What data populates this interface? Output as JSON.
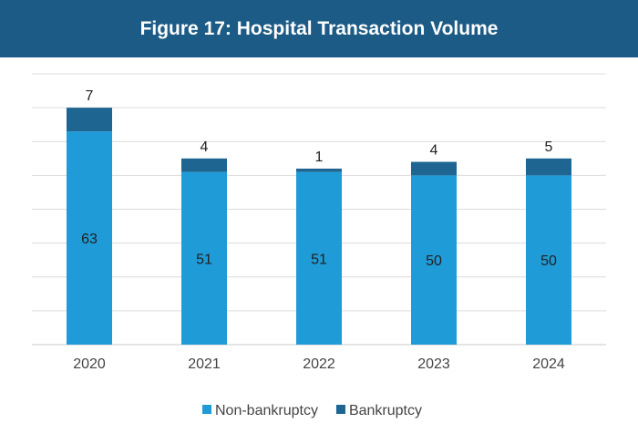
{
  "chart_data": {
    "type": "bar",
    "stacked": true,
    "title": "Figure 17: Hospital Transaction Volume",
    "categories": [
      "2020",
      "2021",
      "2022",
      "2023",
      "2024"
    ],
    "series": [
      {
        "name": "Non-bankruptcy",
        "values": [
          63,
          51,
          51,
          50,
          50
        ],
        "color": "#1f9bd7"
      },
      {
        "name": "Bankruptcy",
        "values": [
          7,
          4,
          1,
          4,
          5
        ],
        "color": "#1e6592"
      }
    ],
    "ylim": [
      0,
      80
    ],
    "grid": true,
    "legend": "bottom",
    "xlabel": "",
    "ylabel": ""
  }
}
